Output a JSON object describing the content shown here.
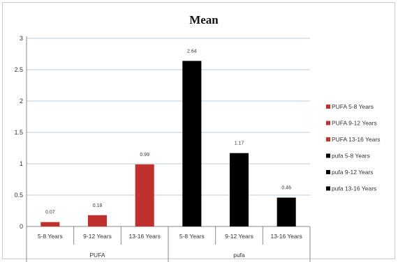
{
  "chart_data": {
    "type": "bar",
    "title": "Mean",
    "xlabel": "",
    "ylabel": "",
    "ylim": [
      0,
      3
    ],
    "yticks": [
      "0",
      "0.5",
      "1",
      "1.5",
      "2",
      "2.5",
      "3"
    ],
    "grid": true,
    "legend_position": "right",
    "groups": [
      {
        "label": "PUFA",
        "color": "#c0302c",
        "categories": [
          "5-8 Years",
          "9-12 Years",
          "13-16 Years"
        ],
        "values": [
          0.07,
          0.18,
          0.99
        ],
        "data_labels": [
          "0.07",
          "0.18",
          "0.99"
        ]
      },
      {
        "label": "pufa",
        "color": "#000000",
        "categories": [
          "5-8 Years",
          "9-12 Years",
          "13-16 Years"
        ],
        "values": [
          2.64,
          1.17,
          0.46
        ],
        "data_labels": [
          "2.64",
          "1.17",
          "0.46"
        ]
      }
    ],
    "legend": [
      {
        "label": "PUFA 5-8 Years",
        "color": "#c0302c"
      },
      {
        "label": "PUFA 9-12 Years",
        "color": "#c0302c"
      },
      {
        "label": "PUFA 13-16 Years",
        "color": "#c0302c"
      },
      {
        "label": "pufa 5-8 Years",
        "color": "#000000"
      },
      {
        "label": "pufa 9-12 Years",
        "color": "#000000"
      },
      {
        "label": "pufa 13-16 Years",
        "color": "#000000"
      }
    ]
  }
}
